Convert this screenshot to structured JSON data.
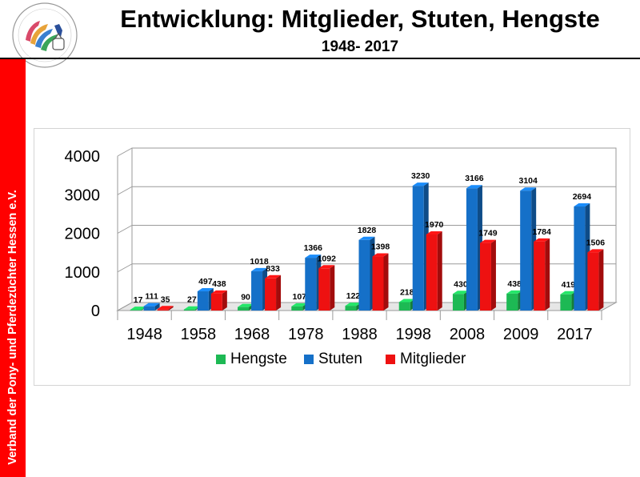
{
  "header": {
    "title": "Entwicklung: Mitglieder, Stuten, Hengste",
    "subtitle": "1948- 2017"
  },
  "sidebar": {
    "text": "Verband der Pony- und Pferdezüchter Hessen e.V.",
    "color": "#ff0000"
  },
  "logo": {
    "icon": "horse-logo-icon",
    "text": "Verband der Pony- und Pferdezüchter Hessen e.V."
  },
  "chart_data": {
    "type": "bar",
    "categories": [
      "1948",
      "1958",
      "1968",
      "1978",
      "1988",
      "1998",
      "2008",
      "2009",
      "2017"
    ],
    "series": [
      {
        "name": "Hengste",
        "color": "#1db954",
        "values": [
          17,
          27,
          90,
          107,
          122,
          218,
          430,
          438,
          419
        ]
      },
      {
        "name": "Stuten",
        "color": "#1570c8",
        "values": [
          111,
          497,
          1018,
          1366,
          1828,
          3230,
          3166,
          3104,
          2694
        ]
      },
      {
        "name": "Mitglieder",
        "color": "#ee1111",
        "values": [
          35,
          438,
          833,
          1092,
          1398,
          1970,
          1749,
          1784,
          1506
        ]
      }
    ],
    "yticks": [
      "0",
      "1000",
      "2000",
      "3000",
      "4000"
    ],
    "ylim": [
      0,
      4000
    ],
    "title": "",
    "xlabel": "",
    "ylabel": "",
    "legend": "bottom",
    "grid": true
  }
}
